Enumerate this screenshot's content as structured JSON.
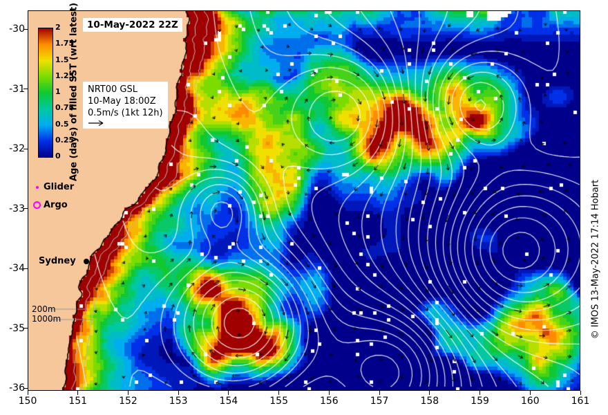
{
  "figure": {
    "date_label": "10-May-2022 22Z",
    "credit": "© IMOS 13-May-2022 17:14 Hobart",
    "land_color": "#F6C79B",
    "contour_color": "#FFFFFF"
  },
  "legend": {
    "line1": "NRT00 GSL",
    "line2": "10-May 18:00Z",
    "line3": "0.5m/s (1kt 12h)"
  },
  "markers": {
    "glider_label": "Glider",
    "argo_label": "Argo",
    "city_label": "Sydney",
    "marker_color": "#FF00FF"
  },
  "isobaths": {
    "label_200": "200m",
    "label_1000": "1000m"
  },
  "colorbar": {
    "title": "Age (days) of filled SST (wrt latest)",
    "tick_labels": [
      "2",
      "1.75",
      "1.5",
      "1.25",
      "1",
      "0.75",
      "0.5",
      "0.25",
      "0"
    ],
    "min": 0,
    "max": 2,
    "palette_low_to_high": [
      "#00008B",
      "#0030E8",
      "#00AEF0",
      "#00C8A0",
      "#10C830",
      "#7CDC00",
      "#F0E000",
      "#FF8C00",
      "#A00000"
    ]
  },
  "axes": {
    "x_tick_labels": [
      "150",
      "151",
      "152",
      "153",
      "154",
      "155",
      "156",
      "157",
      "158",
      "159",
      "160",
      "161"
    ],
    "y_tick_labels": [
      "-30",
      "-31",
      "-32",
      "-33",
      "-34",
      "-35",
      "-36"
    ]
  }
}
